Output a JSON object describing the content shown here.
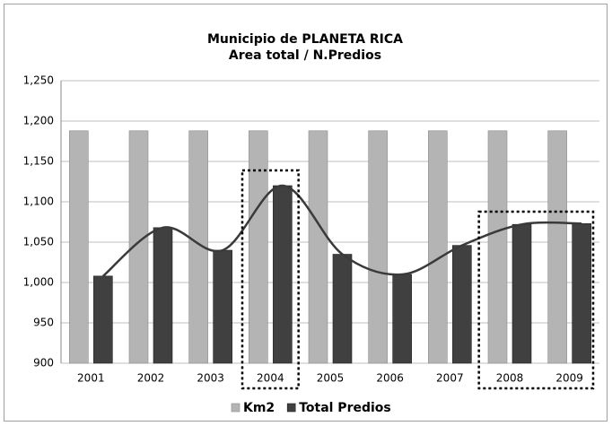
{
  "chart_data": {
    "type": "bar",
    "title": "Municipio de PLANETA RICA",
    "subtitle": "Area total / N.Predios",
    "categories": [
      "2001",
      "2002",
      "2003",
      "2004",
      "2005",
      "2006",
      "2007",
      "2008",
      "2009"
    ],
    "series": [
      {
        "name": "Km2",
        "color": "#b4b4b4",
        "values": [
          1188,
          1188,
          1188,
          1188,
          1188,
          1188,
          1188,
          1188,
          1188
        ]
      },
      {
        "name": "Total Predios",
        "color": "#404040",
        "values": [
          1008,
          1068,
          1040,
          1120,
          1035,
          1010,
          1046,
          1072,
          1073
        ]
      }
    ],
    "ylim": [
      900,
      1250
    ],
    "yticks": [
      900,
      950,
      {
        "value": 1000,
        "label": "1,000"
      },
      {
        "value": 1050,
        "label": "1,050"
      },
      {
        "value": 1100,
        "label": "1,100"
      },
      {
        "value": 1150,
        "label": "1,150"
      },
      {
        "value": 1200,
        "label": "1,200"
      },
      {
        "value": 1250,
        "label": "1,250"
      }
    ],
    "grid": true,
    "legend": "bottom"
  }
}
